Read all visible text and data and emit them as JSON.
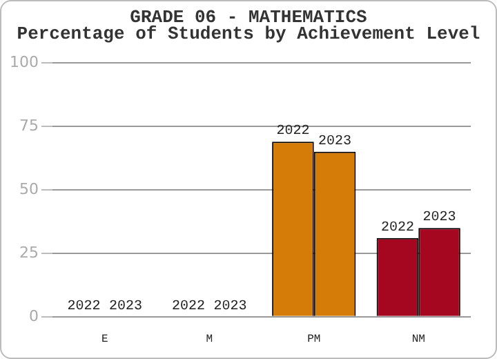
{
  "chart_data": {
    "type": "bar",
    "title": "GRADE 06 - MATHEMATICS",
    "subtitle": "Percentage of Students by Achievement Level",
    "categories": [
      "E",
      "M",
      "PM",
      "NM"
    ],
    "series": [
      {
        "name": "2022",
        "colors": [
          "#2e7d32",
          "#1f5fa8",
          "#d57b08",
          "#a4071f"
        ],
        "values": [
          0,
          0,
          69,
          31
        ]
      },
      {
        "name": "2023",
        "colors": [
          "#2e7d32",
          "#1f5fa8",
          "#d57b08",
          "#a4071f"
        ],
        "values": [
          0,
          0,
          65,
          35
        ]
      }
    ],
    "ylim": [
      0,
      100
    ],
    "yticks": [
      0,
      25,
      50,
      75,
      100
    ],
    "grid": "y",
    "legend": false
  }
}
